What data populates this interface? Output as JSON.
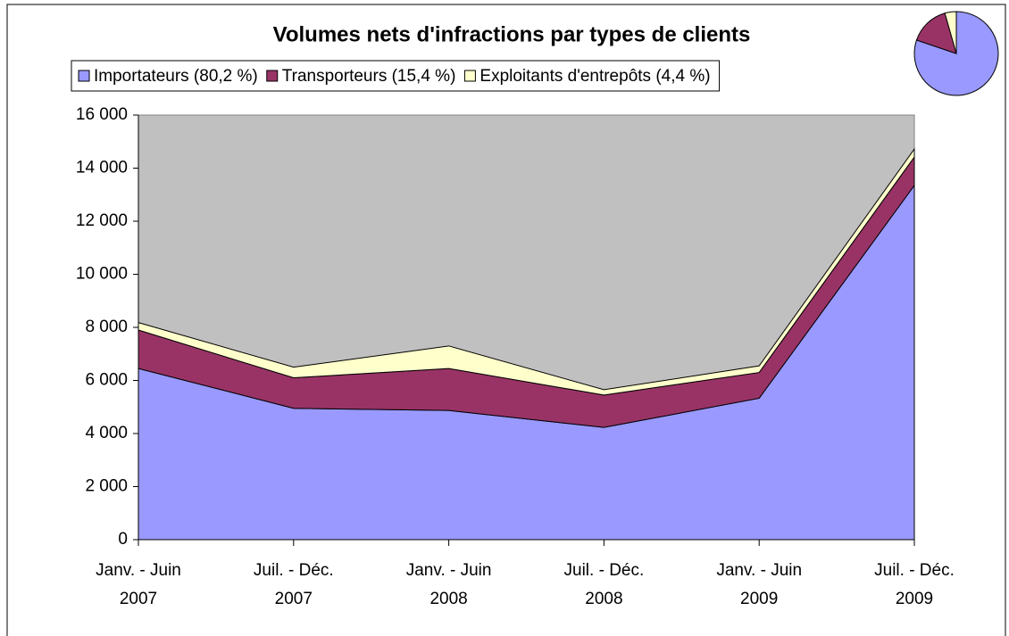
{
  "chart_data": [
    {
      "type": "area",
      "title": "Volumes nets d'infractions par types de clients",
      "categories": [
        "Janv. - Juin\n2007",
        "Juil. - Déc.\n2007",
        "Janv. - Juin\n2008",
        "Juil. - Déc.\n2008",
        "Janv. - Juin\n2009",
        "Juil. - Déc.\n2009"
      ],
      "series": [
        {
          "name": "Importateurs (80,2 %)",
          "color": "#9999ff",
          "values": [
            6450,
            4950,
            4870,
            4230,
            5330,
            13350
          ]
        },
        {
          "name": "Transporteurs (15,4 %)",
          "color": "#993366",
          "values": [
            1450,
            1150,
            1580,
            1220,
            970,
            1070
          ]
        },
        {
          "name": "Exploitants d'entrepôts (4,4 %)",
          "color": "#ffffcc",
          "values": [
            280,
            400,
            850,
            200,
            250,
            300
          ]
        }
      ],
      "stacked": true,
      "ylim": [
        0,
        16000
      ],
      "yticks": [
        0,
        {
          "value": 2000,
          "label": "2 000"
        },
        {
          "value": 4000,
          "label": "4 000"
        },
        {
          "value": 6000,
          "label": "6 000"
        },
        {
          "value": 8000,
          "label": "8 000"
        },
        {
          "value": 10000,
          "label": "10 000"
        },
        {
          "value": 12000,
          "label": "12 000"
        },
        {
          "value": 14000,
          "label": "14 000"
        },
        {
          "value": 16000,
          "label": "16 000"
        }
      ],
      "plot_background": "#c0c0c0",
      "legend": "top"
    },
    {
      "type": "pie",
      "values": [
        80.2,
        15.4,
        4.4
      ],
      "colors": [
        "#9999ff",
        "#993366",
        "#ffffcc"
      ]
    }
  ]
}
